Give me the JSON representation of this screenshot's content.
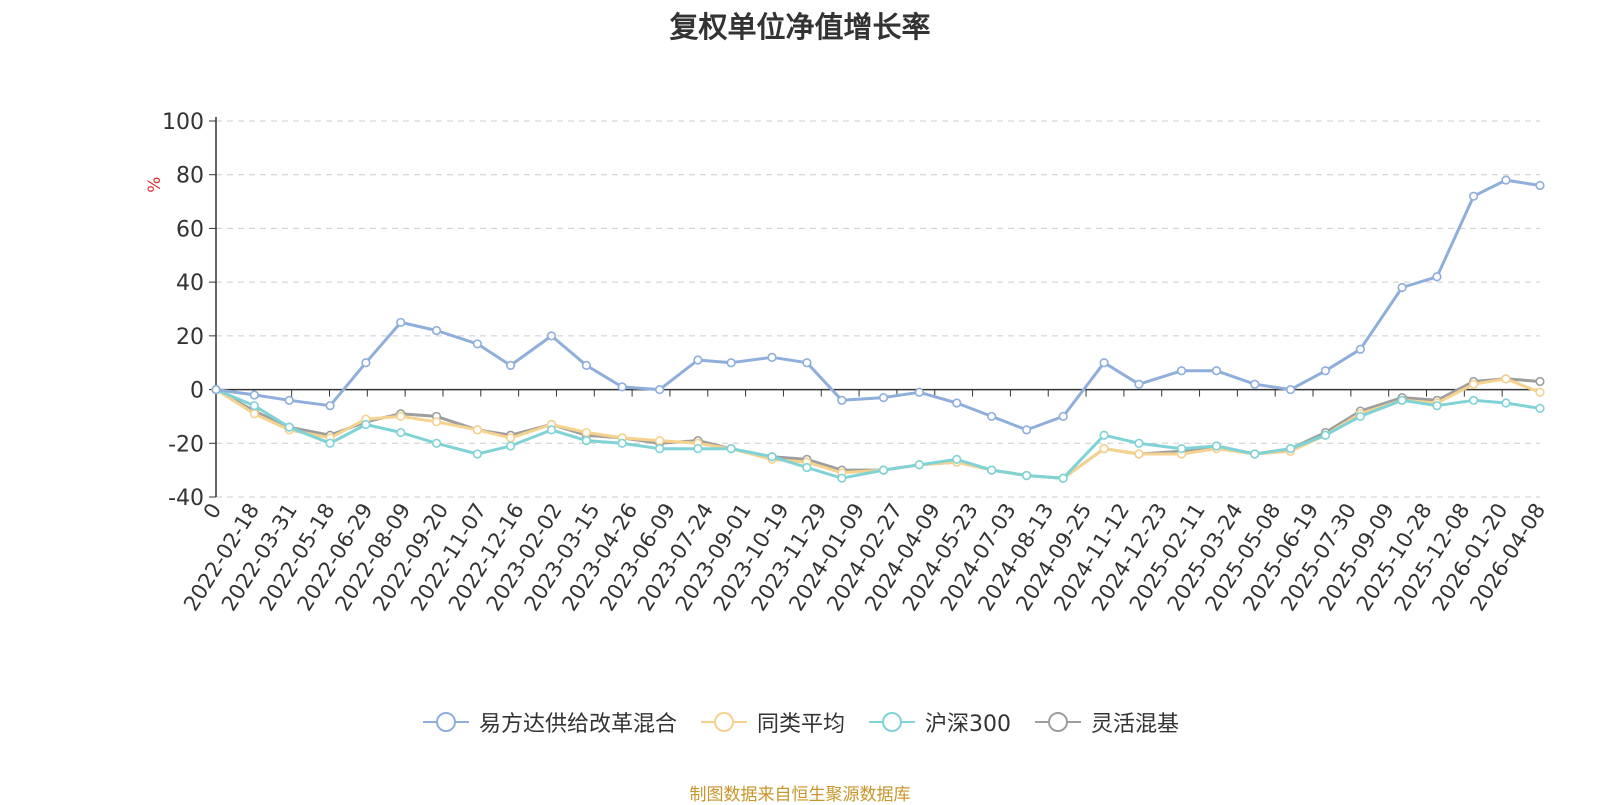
{
  "chart_data": {
    "type": "line",
    "title": "复权单位净值增长率",
    "ylabel": "%",
    "ylim": [
      -40,
      100
    ],
    "yticks": [
      -40,
      -20,
      0,
      20,
      40,
      60,
      80,
      100
    ],
    "xlim": [
      "2022-01-04",
      "2026-04-08"
    ],
    "x_tick_labels": [
      "0",
      "2022-02-18",
      "2022-03-31",
      "2022-05-18",
      "2022-06-29",
      "2022-08-09",
      "2022-09-20",
      "2022-11-07",
      "2022-12-16",
      "2023-02-02",
      "2023-03-15",
      "2023-04-26",
      "2023-06-09",
      "2023-07-24",
      "2023-09-01",
      "2023-10-19",
      "2023-11-29",
      "2024-01-09",
      "2024-02-27",
      "2024-04-09",
      "2024-05-23",
      "2024-07-03",
      "2024-08-13",
      "2024-09-25",
      "2024-11-12",
      "2024-12-23",
      "2025-02-11",
      "2025-03-24",
      "2025-05-08",
      "2025-06-19",
      "2025-07-30",
      "2025-09-09",
      "2025-10-28",
      "2025-12-08",
      "2026-01-20",
      "2026-04-08"
    ],
    "grid": true,
    "legend_position": "bottom",
    "series": [
      {
        "name": "易方达供给改革混合",
        "color": "#8eaedb",
        "x": [
          "2022-01-04",
          "2022-02-18",
          "2022-03-31",
          "2022-05-18",
          "2022-06-29",
          "2022-08-09",
          "2022-09-20",
          "2022-11-07",
          "2022-12-16",
          "2023-02-02",
          "2023-03-15",
          "2023-04-26",
          "2023-06-09",
          "2023-07-24",
          "2023-09-01",
          "2023-10-19",
          "2023-11-29",
          "2024-01-09",
          "2024-02-27",
          "2024-04-09",
          "2024-05-23",
          "2024-07-03",
          "2024-08-13",
          "2024-09-25",
          "2024-11-12",
          "2024-12-23",
          "2025-02-11",
          "2025-03-24",
          "2025-05-08",
          "2025-06-19",
          "2025-07-30",
          "2025-09-09",
          "2025-10-28",
          "2025-12-08",
          "2026-01-20",
          "2026-02-27",
          "2026-04-08"
        ],
        "values": [
          0,
          -2,
          -4,
          -6,
          10,
          25,
          22,
          17,
          9,
          20,
          9,
          1,
          0,
          11,
          10,
          12,
          10,
          -4,
          -3,
          -1,
          -5,
          -10,
          -15,
          -10,
          10,
          2,
          7,
          7,
          2,
          0,
          7,
          15,
          38,
          42,
          72,
          78,
          76
        ]
      },
      {
        "name": "同类平均",
        "color": "#f5d28e",
        "x": [
          "2022-01-04",
          "2022-02-18",
          "2022-03-31",
          "2022-05-18",
          "2022-06-29",
          "2022-08-09",
          "2022-09-20",
          "2022-11-07",
          "2022-12-16",
          "2023-02-02",
          "2023-03-15",
          "2023-04-26",
          "2023-06-09",
          "2023-07-24",
          "2023-09-01",
          "2023-10-19",
          "2023-11-29",
          "2024-01-09",
          "2024-02-27",
          "2024-04-09",
          "2024-05-23",
          "2024-07-03",
          "2024-08-13",
          "2024-09-25",
          "2024-11-12",
          "2024-12-23",
          "2025-02-11",
          "2025-03-24",
          "2025-05-08",
          "2025-06-19",
          "2025-07-30",
          "2025-09-09",
          "2025-10-28",
          "2025-12-08",
          "2026-01-20",
          "2026-02-27",
          "2026-04-08"
        ],
        "values": [
          0,
          -9,
          -15,
          -18,
          -11,
          -10,
          -12,
          -15,
          -18,
          -13,
          -16,
          -18,
          -19,
          -20,
          -22,
          -26,
          -27,
          -31,
          -30,
          -28,
          -27,
          -30,
          -32,
          -33,
          -22,
          -24,
          -24,
          -22,
          -24,
          -23,
          -17,
          -9,
          -4,
          -5,
          2,
          4,
          -1
        ]
      },
      {
        "name": "沪深300",
        "color": "#7fd3d6",
        "x": [
          "2022-01-04",
          "2022-02-18",
          "2022-03-31",
          "2022-05-18",
          "2022-06-29",
          "2022-08-09",
          "2022-09-20",
          "2022-11-07",
          "2022-12-16",
          "2023-02-02",
          "2023-03-15",
          "2023-04-26",
          "2023-06-09",
          "2023-07-24",
          "2023-09-01",
          "2023-10-19",
          "2023-11-29",
          "2024-01-09",
          "2024-02-27",
          "2024-04-09",
          "2024-05-23",
          "2024-07-03",
          "2024-08-13",
          "2024-09-25",
          "2024-11-12",
          "2024-12-23",
          "2025-02-11",
          "2025-03-24",
          "2025-05-08",
          "2025-06-19",
          "2025-07-30",
          "2025-09-09",
          "2025-10-28",
          "2025-12-08",
          "2026-01-20",
          "2026-02-27",
          "2026-04-08"
        ],
        "values": [
          0,
          -6,
          -14,
          -20,
          -13,
          -16,
          -20,
          -24,
          -21,
          -15,
          -19,
          -20,
          -22,
          -22,
          -22,
          -25,
          -29,
          -33,
          -30,
          -28,
          -26,
          -30,
          -32,
          -33,
          -17,
          -20,
          -22,
          -21,
          -24,
          -22,
          -17,
          -10,
          -4,
          -6,
          -4,
          -5,
          -7
        ]
      },
      {
        "name": "灵活混基",
        "color": "#9e9e9e",
        "x": [
          "2022-01-04",
          "2022-02-18",
          "2022-03-31",
          "2022-05-18",
          "2022-06-29",
          "2022-08-09",
          "2022-09-20",
          "2022-11-07",
          "2022-12-16",
          "2023-02-02",
          "2023-03-15",
          "2023-04-26",
          "2023-06-09",
          "2023-07-24",
          "2023-09-01",
          "2023-10-19",
          "2023-11-29",
          "2024-01-09",
          "2024-02-27",
          "2024-04-09",
          "2024-05-23",
          "2024-07-03",
          "2024-08-13",
          "2024-09-25",
          "2024-11-12",
          "2024-12-23",
          "2025-02-11",
          "2025-03-24",
          "2025-05-08",
          "2025-06-19",
          "2025-07-30",
          "2025-09-09",
          "2025-10-28",
          "2025-12-08",
          "2026-01-20",
          "2026-02-27",
          "2026-04-08"
        ],
        "values": [
          0,
          -8,
          -14,
          -17,
          -12,
          -9,
          -10,
          -15,
          -17,
          -13,
          -17,
          -18,
          -20,
          -19,
          -22,
          -25,
          -26,
          -30,
          -30,
          -28,
          -27,
          -30,
          -32,
          -33,
          -22,
          -24,
          -23,
          -21,
          -24,
          -22,
          -16,
          -8,
          -3,
          -4,
          3,
          4,
          3
        ]
      }
    ]
  },
  "legend": {
    "items": [
      "易方达供给改革混合",
      "同类平均",
      "沪深300",
      "灵活混基"
    ]
  },
  "source_note": "制图数据来自恒生聚源数据库"
}
